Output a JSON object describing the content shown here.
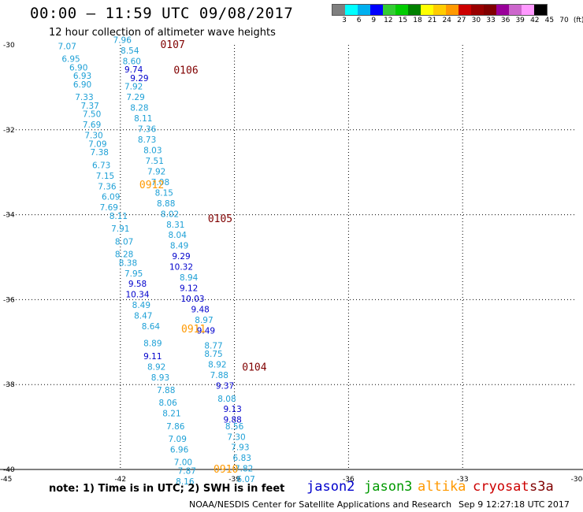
{
  "header": {
    "title": "00:00 – 11:59 UTC 09/08/2017",
    "subtitle": "12 hour collection of altimeter wave heights"
  },
  "color_scale": {
    "colors": [
      "#7f7f7f",
      "#00ffff",
      "#00b0f0",
      "#0000ff",
      "#33cc33",
      "#00cc00",
      "#008000",
      "#ffff00",
      "#ffcc00",
      "#ff9900",
      "#cc0000",
      "#990000",
      "#800000",
      "#990099",
      "#cc66cc",
      "#ff99ff",
      "#000000"
    ],
    "labels": [
      "3",
      "6",
      "9",
      "12",
      "15",
      "18",
      "21",
      "24",
      "27",
      "30",
      "33",
      "36",
      "39",
      "42",
      "45",
      "70",
      "(ft)"
    ]
  },
  "map": {
    "lat_labels": [
      "-30",
      "-32",
      "-34",
      "-36",
      "-38",
      "-40"
    ],
    "lon_labels": [
      "-45",
      "-42",
      "-39",
      "-36",
      "-33",
      "-30"
    ],
    "axes": {
      "lon_range": [
        -45,
        -30
      ],
      "lat_range": [
        -30,
        -40
      ]
    }
  },
  "note": "note: 1) Time is in UTC; 2) SWH is in feet",
  "legend": [
    {
      "label": "jason2",
      "color": "#0000cc"
    },
    {
      "label": "jason3",
      "color": "#009900"
    },
    {
      "label": "altika",
      "color": "#ff9900"
    },
    {
      "label": "cryosat",
      "color": "#cc0000"
    },
    {
      "label": "s3a",
      "color": "#800000"
    }
  ],
  "credit": "NOAA/NESDIS Center for Satellite Applications and Research",
  "timestamp": "Sep  9 12:27:18 UTC 2017",
  "pass_labels": [
    {
      "text": "0107",
      "lat": -30.0,
      "lon": -40.95,
      "color": "#800000"
    },
    {
      "text": "0106",
      "lat": -30.6,
      "lon": -40.6,
      "color": "#800000"
    },
    {
      "text": "0912",
      "lat": -33.3,
      "lon": -41.5,
      "color": "#ff9900"
    },
    {
      "text": "0105",
      "lat": -34.1,
      "lon": -39.7,
      "color": "#800000"
    },
    {
      "text": "0911",
      "lat": -36.7,
      "lon": -40.4,
      "color": "#ff9900"
    },
    {
      "text": "0104",
      "lat": -37.6,
      "lon": -38.8,
      "color": "#800000"
    },
    {
      "text": "0910",
      "lat": -40.0,
      "lon": -39.55,
      "color": "#ff9900"
    }
  ],
  "chart_data": {
    "type": "scatter",
    "title": "00:00 – 11:59 UTC 09/08/2017",
    "subtitle": "12 hour collection of altimeter wave heights",
    "xlim": [
      -45,
      -30
    ],
    "ylim": [
      -40,
      -30
    ],
    "series": [
      {
        "name": "altika",
        "color": "#1ea0d6",
        "points": [
          {
            "lat": -30.1,
            "lon": -43.4,
            "v": "7.07"
          },
          {
            "lat": -30.4,
            "lon": -43.3,
            "v": "6.95"
          },
          {
            "lat": -30.6,
            "lon": -43.1,
            "v": "6.90"
          },
          {
            "lat": -30.8,
            "lon": -43.0,
            "v": "6.93"
          },
          {
            "lat": -31.0,
            "lon": -43.0,
            "v": "6.90"
          },
          {
            "lat": -31.3,
            "lon": -42.95,
            "v": "7.33"
          },
          {
            "lat": -31.5,
            "lon": -42.8,
            "v": "7.37"
          },
          {
            "lat": -31.7,
            "lon": -42.75,
            "v": "7.50"
          },
          {
            "lat": -31.95,
            "lon": -42.75,
            "v": "7.69"
          },
          {
            "lat": -32.2,
            "lon": -42.7,
            "v": "7.30"
          },
          {
            "lat": -32.4,
            "lon": -42.6,
            "v": "7.09"
          },
          {
            "lat": -32.6,
            "lon": -42.55,
            "v": "7.38"
          },
          {
            "lat": -32.9,
            "lon": -42.5,
            "v": "6.73"
          },
          {
            "lat": -33.15,
            "lon": -42.4,
            "v": "7.15"
          },
          {
            "lat": -33.4,
            "lon": -42.35,
            "v": "7.36"
          },
          {
            "lat": -33.65,
            "lon": -42.25,
            "v": "6.09"
          },
          {
            "lat": -33.9,
            "lon": -42.3,
            "v": "7.69"
          },
          {
            "lat": -34.1,
            "lon": -42.05,
            "v": "8.11"
          },
          {
            "lat": -34.4,
            "lon": -42.0,
            "v": "7.91"
          },
          {
            "lat": -34.7,
            "lon": -41.9,
            "v": "8.07"
          },
          {
            "lat": -35.0,
            "lon": -41.9,
            "v": "8.28"
          },
          {
            "lat": -35.2,
            "lon": -41.8,
            "v": "8.38"
          },
          {
            "lat": -35.45,
            "lon": -41.65,
            "v": "7.95"
          },
          {
            "lat": -36.2,
            "lon": -41.45,
            "v": "8.49"
          },
          {
            "lat": -36.45,
            "lon": -41.4,
            "v": "8.47"
          },
          {
            "lat": -36.7,
            "lon": -41.2,
            "v": "8.64"
          },
          {
            "lat": -37.1,
            "lon": -41.15,
            "v": "8.89"
          },
          {
            "lat": -37.65,
            "lon": -41.05,
            "v": "8.92"
          },
          {
            "lat": -37.9,
            "lon": -40.95,
            "v": "8.93"
          },
          {
            "lat": -38.2,
            "lon": -40.8,
            "v": "7.88"
          },
          {
            "lat": -38.5,
            "lon": -40.75,
            "v": "8.06"
          },
          {
            "lat": -38.75,
            "lon": -40.65,
            "v": "8.21"
          },
          {
            "lat": -39.05,
            "lon": -40.55,
            "v": "7.86"
          },
          {
            "lat": -39.35,
            "lon": -40.5,
            "v": "7.09"
          },
          {
            "lat": -39.6,
            "lon": -40.45,
            "v": "6.96"
          },
          {
            "lat": -39.9,
            "lon": -40.35,
            "v": "7.00"
          },
          {
            "lat": -40.1,
            "lon": -40.25,
            "v": "7.87"
          },
          {
            "lat": -40.35,
            "lon": -40.3,
            "v": "8.16"
          },
          {
            "lat": -29.95,
            "lon": -41.95,
            "v": "7.96"
          },
          {
            "lat": -30.2,
            "lon": -41.75,
            "v": "8.54"
          },
          {
            "lat": -30.45,
            "lon": -41.7,
            "v": "8.60"
          },
          {
            "lat": -31.05,
            "lon": -41.65,
            "v": "7.92"
          },
          {
            "lat": -31.3,
            "lon": -41.6,
            "v": "7.29"
          },
          {
            "lat": -31.55,
            "lon": -41.5,
            "v": "8.28"
          },
          {
            "lat": -31.8,
            "lon": -41.4,
            "v": "8.11"
          },
          {
            "lat": -32.05,
            "lon": -41.3,
            "v": "7.36"
          },
          {
            "lat": -32.3,
            "lon": -41.3,
            "v": "8.73"
          },
          {
            "lat": -32.55,
            "lon": -41.15,
            "v": "8.03"
          },
          {
            "lat": -32.8,
            "lon": -41.1,
            "v": "7.51"
          },
          {
            "lat": -33.05,
            "lon": -41.05,
            "v": "7.92"
          },
          {
            "lat": -33.3,
            "lon": -40.95,
            "v": "7.08"
          },
          {
            "lat": -33.55,
            "lon": -40.85,
            "v": "8.15"
          },
          {
            "lat": -33.8,
            "lon": -40.8,
            "v": "8.88"
          },
          {
            "lat": -34.05,
            "lon": -40.7,
            "v": "8.02"
          },
          {
            "lat": -34.3,
            "lon": -40.55,
            "v": "8.31"
          },
          {
            "lat": -34.55,
            "lon": -40.5,
            "v": "8.04"
          },
          {
            "lat": -34.8,
            "lon": -40.45,
            "v": "8.49"
          },
          {
            "lat": -35.55,
            "lon": -40.2,
            "v": "8.94"
          },
          {
            "lat": -36.55,
            "lon": -39.8,
            "v": "8.97"
          },
          {
            "lat": -37.15,
            "lon": -39.55,
            "v": "8.77"
          },
          {
            "lat": -37.35,
            "lon": -39.55,
            "v": "8.75"
          },
          {
            "lat": -37.6,
            "lon": -39.45,
            "v": "8.92"
          },
          {
            "lat": -37.85,
            "lon": -39.4,
            "v": "7.88"
          },
          {
            "lat": -38.4,
            "lon": -39.2,
            "v": "8.08"
          },
          {
            "lat": -39.05,
            "lon": -39.0,
            "v": "8.56"
          },
          {
            "lat": -39.3,
            "lon": -38.95,
            "v": "7.30"
          },
          {
            "lat": -39.55,
            "lon": -38.85,
            "v": "7.93"
          },
          {
            "lat": -39.8,
            "lon": -38.8,
            "v": "6.83"
          },
          {
            "lat": -40.05,
            "lon": -38.75,
            "v": "7.82"
          },
          {
            "lat": -40.3,
            "lon": -38.7,
            "v": "6.07"
          }
        ]
      },
      {
        "name": "jason2",
        "color": "#0000cc",
        "points": [
          {
            "lat": -30.65,
            "lon": -41.65,
            "v": "9.74"
          },
          {
            "lat": -30.85,
            "lon": -41.5,
            "v": "9.29"
          },
          {
            "lat": -35.7,
            "lon": -41.55,
            "v": "9.58"
          },
          {
            "lat": -35.95,
            "lon": -41.55,
            "v": "10.34"
          },
          {
            "lat": -37.4,
            "lon": -41.15,
            "v": "9.11"
          },
          {
            "lat": -35.05,
            "lon": -40.4,
            "v": "9.29"
          },
          {
            "lat": -35.3,
            "lon": -40.4,
            "v": "10.32"
          },
          {
            "lat": -35.8,
            "lon": -40.2,
            "v": "9.12"
          },
          {
            "lat": -36.05,
            "lon": -40.1,
            "v": "10.03"
          },
          {
            "lat": -36.3,
            "lon": -39.9,
            "v": "9.48"
          },
          {
            "lat": -36.8,
            "lon": -39.75,
            "v": "9.49"
          },
          {
            "lat": -38.1,
            "lon": -39.25,
            "v": "9.37"
          },
          {
            "lat": -38.65,
            "lon": -39.05,
            "v": "9.13"
          },
          {
            "lat": -38.9,
            "lon": -39.05,
            "v": "9.88"
          }
        ]
      }
    ]
  }
}
